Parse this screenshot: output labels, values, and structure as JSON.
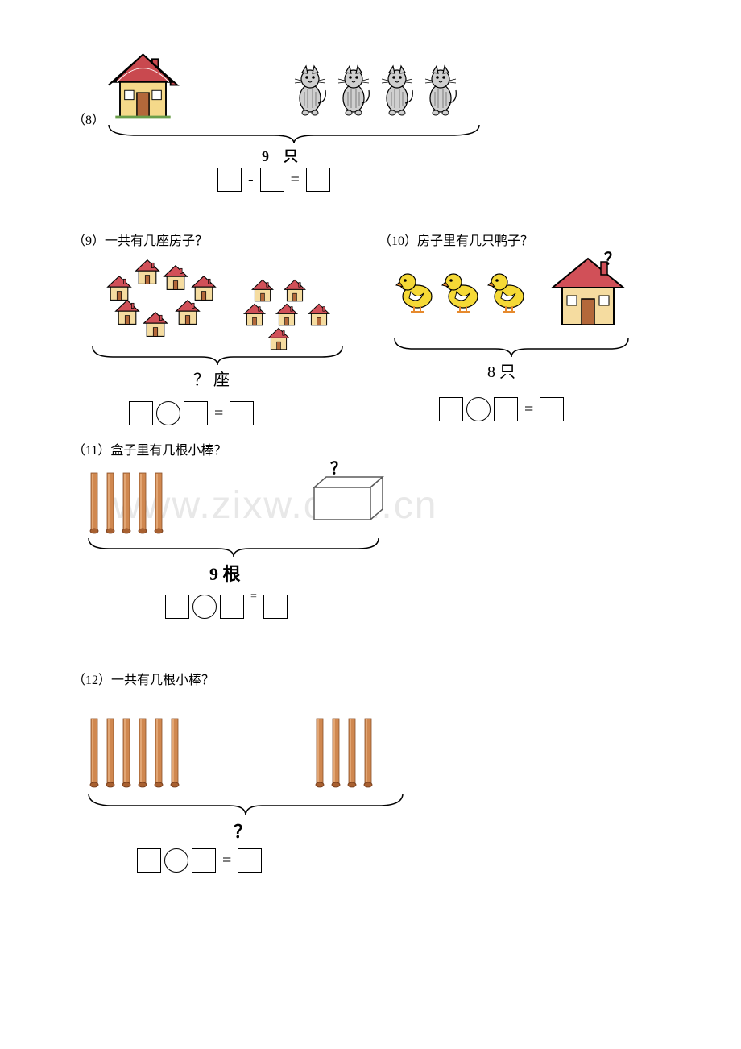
{
  "p8": {
    "label": "（8）",
    "cat_count": 4,
    "total_text": "9　只",
    "op_sign": "-",
    "eq_sign": "=",
    "colors": {
      "house_roof": "#c9494f",
      "house_wall": "#f5d98a",
      "house_outline": "#000000",
      "cat_body": "#cfcfcf",
      "cat_stripe": "#8a8a8a"
    }
  },
  "p9": {
    "label": "（9）一共有几座房子？",
    "left_house_count": 7,
    "right_house_count": 6,
    "total_text": "？ 座",
    "eq_sign": "=",
    "colors": {
      "roof": "#d15058",
      "wall": "#f5dca0"
    }
  },
  "p10": {
    "label": "（10）房子里有几只鸭子？",
    "duck_count": 3,
    "qmark": "？",
    "total_text": "8 只",
    "eq_sign": "=",
    "colors": {
      "duck_body": "#f5d936",
      "duck_beak": "#e68a2e",
      "wing": "#ffffff",
      "roof": "#d15058",
      "wall": "#f5dca0"
    }
  },
  "p11": {
    "label": "（11）盒子里有几根小棒？",
    "stick_count": 5,
    "qmark": "？",
    "total_text": "9 根",
    "eq_sign": "=",
    "colors": {
      "stick": "#d08850",
      "stick_dark": "#a86030",
      "box_face": "#ffffff",
      "box_line": "#5a5a5a"
    }
  },
  "p12": {
    "label": "（12）一共有几根小棒？",
    "left_stick_count": 6,
    "right_stick_count": 4,
    "qmark": "？",
    "eq_sign": "=",
    "colors": {
      "stick": "#d08850",
      "stick_dark": "#a86030"
    }
  },
  "watermark": "www.zixw.com.cn"
}
